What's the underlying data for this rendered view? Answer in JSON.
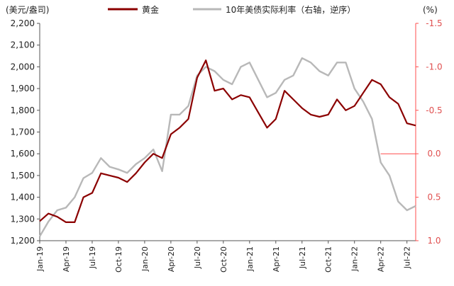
{
  "chart_data": {
    "type": "line",
    "left_unit": "(美元/盎司)",
    "right_unit": "(%)",
    "legend": [
      {
        "name": "黄金",
        "color": "#8b0000"
      },
      {
        "name": "10年美债实际利率（右轴，逆序）",
        "color": "#b8b8b8"
      }
    ],
    "x_ticks": [
      "Jan-19",
      "Apr-19",
      "Jul-19",
      "Oct-19",
      "Jan-20",
      "Apr-20",
      "Jul-20",
      "Oct-20",
      "Jan-21",
      "Apr-21",
      "Jul-21",
      "Oct-21",
      "Jan-22",
      "Apr-22",
      "Jul-22"
    ],
    "x_range": [
      "2019-01",
      "2022-08"
    ],
    "y_left": {
      "min": 1200,
      "max": 2200,
      "ticks": [
        "1,200",
        "1,300",
        "1,400",
        "1,500",
        "1,600",
        "1,700",
        "1,800",
        "1,900",
        "2,000",
        "2,100",
        "2,200"
      ]
    },
    "y_right": {
      "min": -1.5,
      "max": 1.0,
      "inverted": true,
      "ticks": [
        "-1.5",
        "-1.0",
        "-0.5",
        "0.0",
        "0.5",
        "1.0"
      ]
    },
    "reference_line": {
      "y_right": 0.0,
      "from": "2022-04",
      "color": "#ff4d4d"
    },
    "series": [
      {
        "name": "黄金",
        "axis": "left",
        "color": "#8b0000",
        "x": [
          "2019-01",
          "2019-02",
          "2019-03",
          "2019-04",
          "2019-05",
          "2019-06",
          "2019-07",
          "2019-08",
          "2019-09",
          "2019-10",
          "2019-11",
          "2019-12",
          "2020-01",
          "2020-02",
          "2020-03",
          "2020-04",
          "2020-05",
          "2020-06",
          "2020-07",
          "2020-08",
          "2020-09",
          "2020-10",
          "2020-11",
          "2020-12",
          "2021-01",
          "2021-02",
          "2021-03",
          "2021-04",
          "2021-05",
          "2021-06",
          "2021-07",
          "2021-08",
          "2021-09",
          "2021-10",
          "2021-11",
          "2021-12",
          "2022-01",
          "2022-02",
          "2022-03",
          "2022-04",
          "2022-05",
          "2022-06",
          "2022-07",
          "2022-08"
        ],
        "values": [
          1290,
          1325,
          1310,
          1285,
          1285,
          1400,
          1420,
          1510,
          1500,
          1490,
          1470,
          1510,
          1560,
          1600,
          1580,
          1690,
          1720,
          1760,
          1950,
          2030,
          1890,
          1900,
          1850,
          1870,
          1860,
          1790,
          1720,
          1760,
          1890,
          1850,
          1810,
          1780,
          1770,
          1780,
          1850,
          1800,
          1820,
          1880,
          1940,
          1920,
          1860,
          1830,
          1740,
          1730
        ]
      },
      {
        "name": "10年美债实际利率（右轴，逆序）",
        "axis": "right",
        "color": "#b8b8b8",
        "x": [
          "2019-01",
          "2019-02",
          "2019-03",
          "2019-04",
          "2019-05",
          "2019-06",
          "2019-07",
          "2019-08",
          "2019-09",
          "2019-10",
          "2019-11",
          "2019-12",
          "2020-01",
          "2020-02",
          "2020-03",
          "2020-04",
          "2020-05",
          "2020-06",
          "2020-07",
          "2020-08",
          "2020-09",
          "2020-10",
          "2020-11",
          "2020-12",
          "2021-01",
          "2021-02",
          "2021-03",
          "2021-04",
          "2021-05",
          "2021-06",
          "2021-07",
          "2021-08",
          "2021-09",
          "2021-10",
          "2021-11",
          "2021-12",
          "2022-01",
          "2022-02",
          "2022-03",
          "2022-04",
          "2022-05",
          "2022-06",
          "2022-07",
          "2022-08"
        ],
        "values": [
          0.95,
          0.78,
          0.65,
          0.62,
          0.5,
          0.28,
          0.22,
          0.05,
          0.15,
          0.18,
          0.22,
          0.12,
          0.05,
          -0.05,
          0.2,
          -0.45,
          -0.45,
          -0.55,
          -0.9,
          -1.0,
          -0.95,
          -0.85,
          -0.8,
          -1.0,
          -1.05,
          -0.85,
          -0.65,
          -0.7,
          -0.85,
          -0.9,
          -1.1,
          -1.05,
          -0.95,
          -0.9,
          -1.05,
          -1.05,
          -0.75,
          -0.6,
          -0.4,
          0.1,
          0.25,
          0.55,
          0.65,
          0.6
        ]
      }
    ]
  }
}
